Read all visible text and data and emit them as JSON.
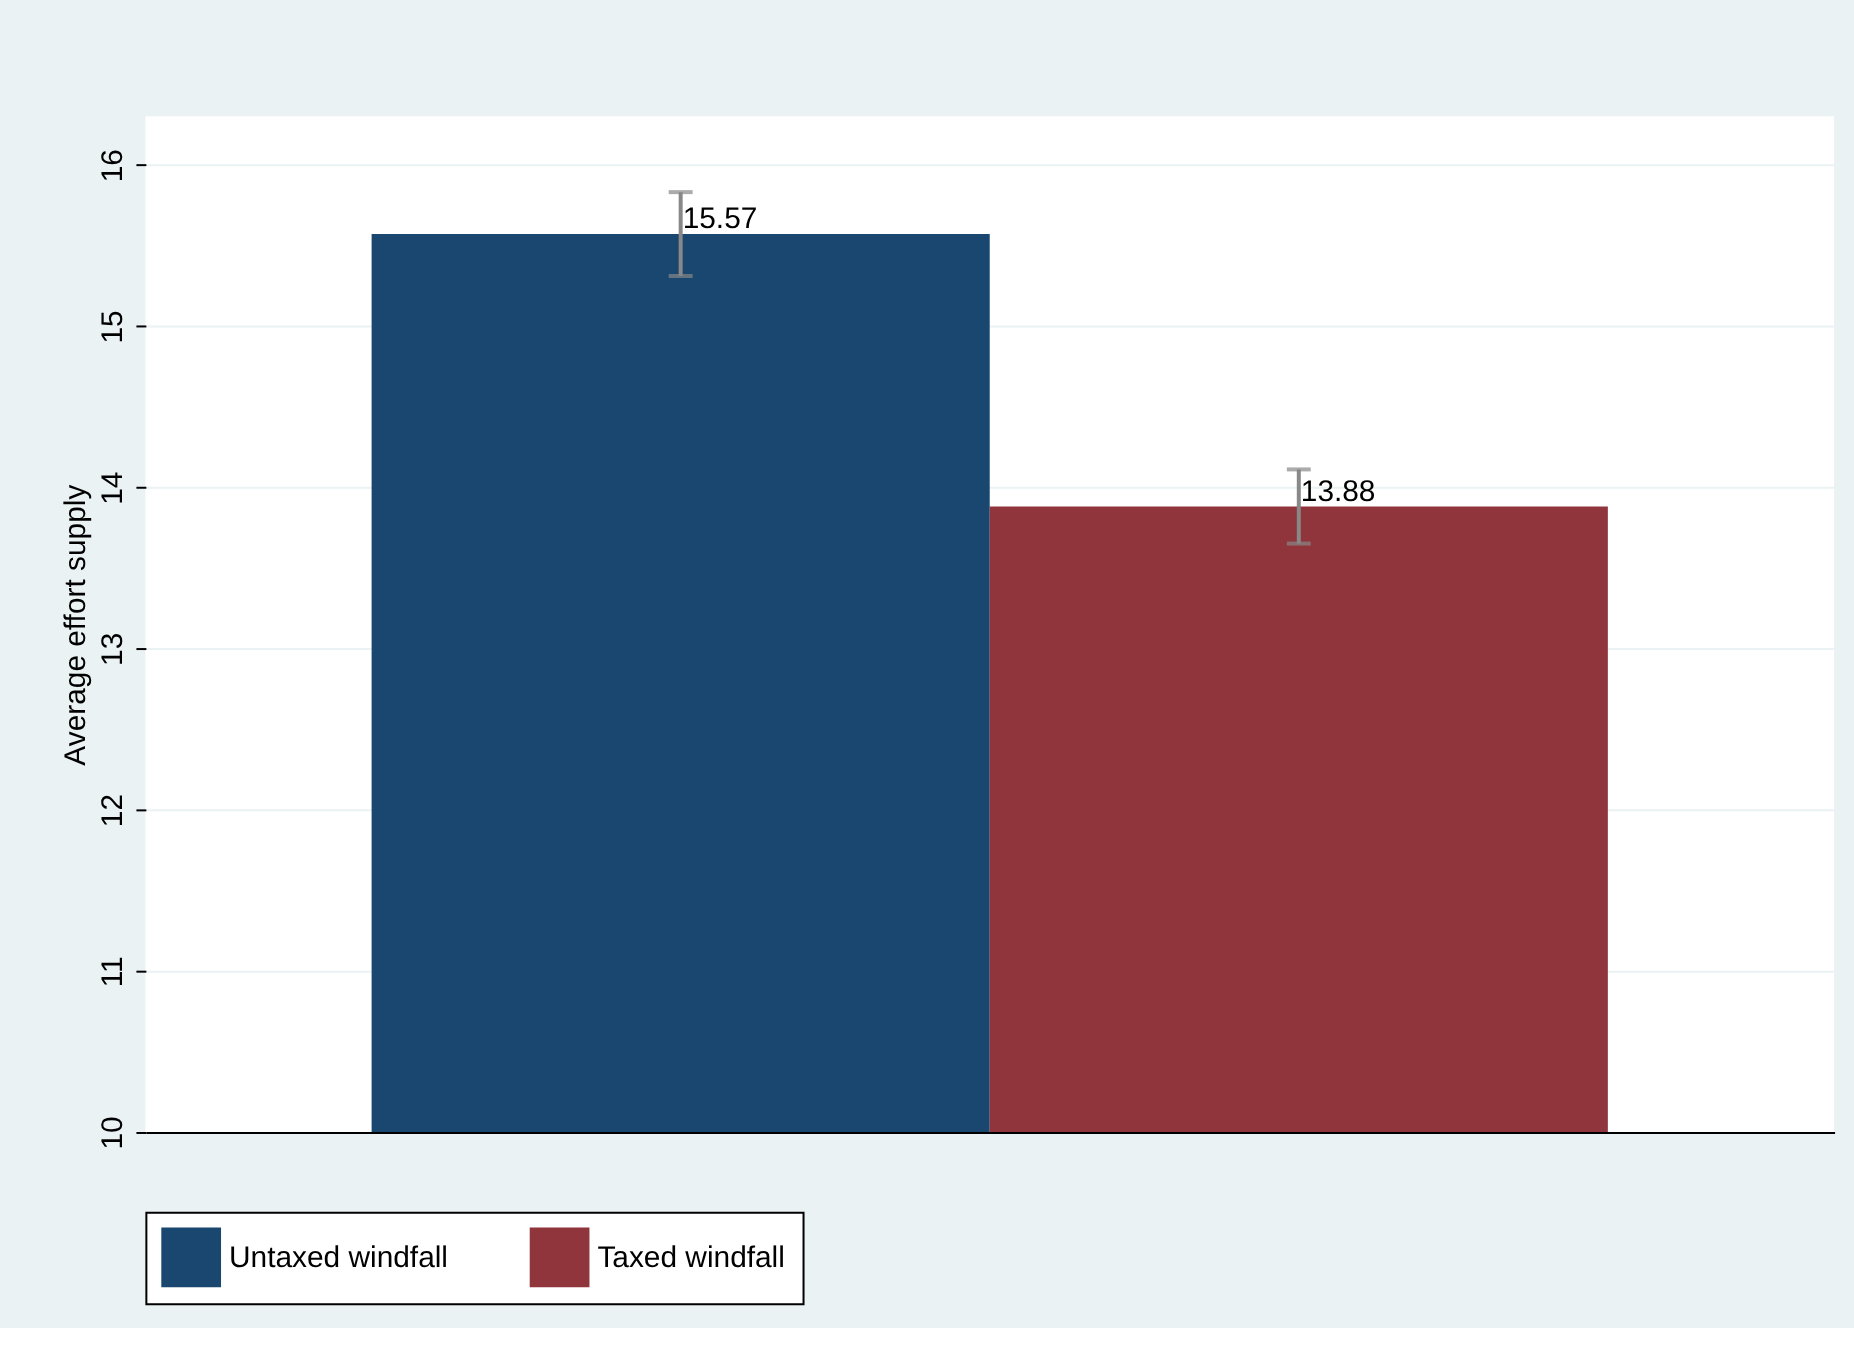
{
  "chart_data": {
    "type": "bar",
    "ylabel": "Average effort supply",
    "categories": [
      null
    ],
    "series": [
      {
        "name": "Untaxed windfall",
        "color": "#1a476f",
        "values": [
          15.57
        ],
        "errors": [
          [
            15.31,
            15.83
          ]
        ],
        "value_labels": [
          "15.57"
        ]
      },
      {
        "name": "Taxed windfall",
        "color": "#90353b",
        "values": [
          13.88
        ],
        "errors": [
          [
            13.65,
            14.11
          ]
        ],
        "value_labels": [
          "13.88"
        ]
      }
    ],
    "ylim": [
      10,
      16.3
    ],
    "yticks": [
      10,
      11,
      12,
      13,
      14,
      15,
      16
    ],
    "grid": "y",
    "legend": "bottom"
  }
}
